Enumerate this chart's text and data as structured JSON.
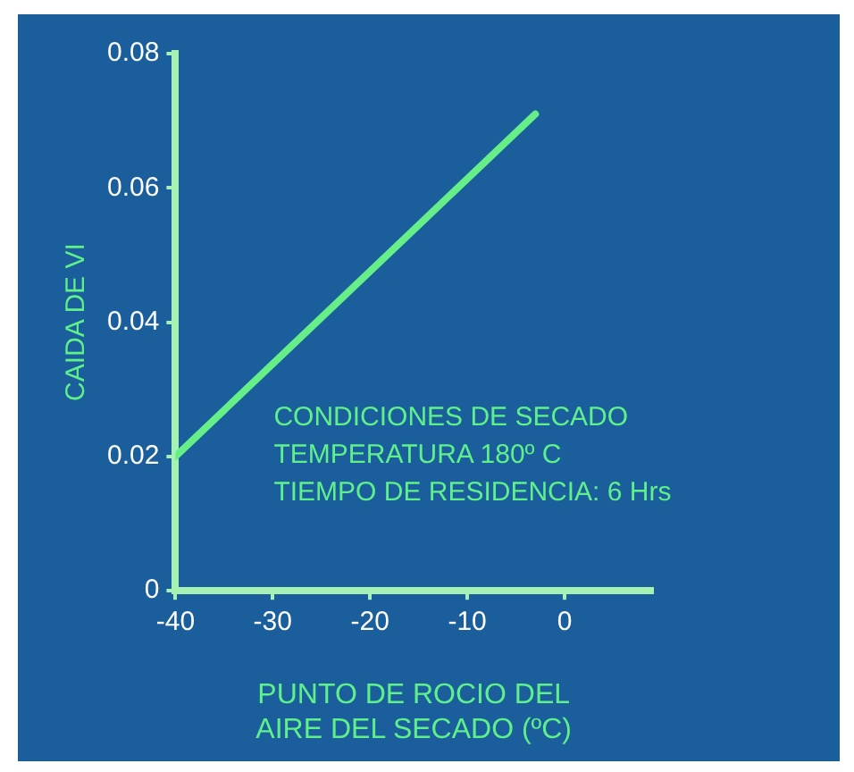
{
  "chart_data": {
    "type": "line",
    "x": [
      -40,
      -3
    ],
    "series": [
      {
        "color": "#66ee88",
        "values": [
          0.02,
          0.071
        ]
      }
    ],
    "xlabel": "PUNTO DE ROCIO DEL\nAIRE DEL SECADO (ºC)",
    "ylabel": "CAIDA DE VI",
    "xlim": [
      -40,
      9
    ],
    "xticks": [
      -40,
      -30,
      -20,
      -10,
      0
    ],
    "ylim": [
      0,
      0.08
    ],
    "yticks": [
      0,
      0.02,
      0.04,
      0.06,
      0.08
    ],
    "grid": false,
    "legend": false,
    "marker": "none",
    "line_style": "solid",
    "annotations": [
      "CONDICIONES DE SECADO",
      "TEMPERATURA 180º C",
      "TIEMPO DE RESIDENCIA: 6 Hrs"
    ]
  }
}
